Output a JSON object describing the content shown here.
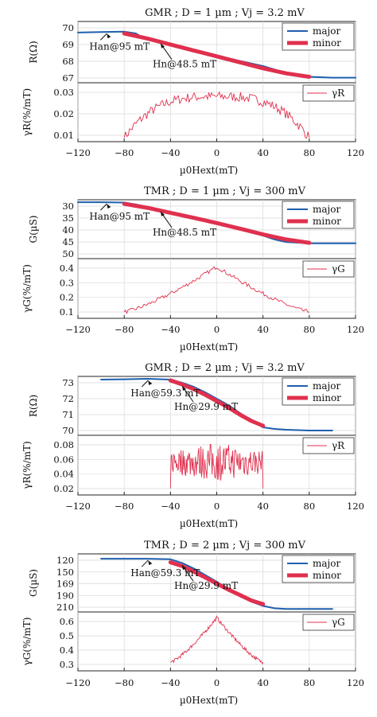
{
  "chart_data": [
    {
      "type": "line",
      "title": "GMR ; D = 1 µm ; Vj = 3.2 mV",
      "top": {
        "ylabel": "R(Ω)",
        "yticks": [
          "70",
          "69",
          "68",
          "67"
        ],
        "ylim": [
          66.6,
          70.2
        ],
        "series": [
          {
            "name": "major",
            "color": "#1f5fae",
            "x": [
              -120,
              -100,
              -80,
              -70,
              -65,
              -60,
              -40,
              -20,
              0,
              20,
              40,
              50,
              60,
              80,
              100,
              120
            ],
            "y": [
              69.55,
              69.58,
              69.6,
              69.5,
              69.3,
              69.2,
              68.85,
              68.5,
              68.2,
              67.88,
              67.58,
              67.38,
              67.15,
              66.95,
              66.9,
              66.9
            ]
          },
          {
            "name": "minor",
            "color": "#e0304e",
            "x": [
              -80,
              -60,
              -40,
              -20,
              0,
              20,
              40,
              60,
              80
            ],
            "y": [
              69.5,
              69.2,
              68.85,
              68.5,
              68.15,
              67.8,
              67.45,
              67.15,
              66.95
            ]
          }
        ],
        "annotations": [
          {
            "label": "Han@95 mT",
            "x": -95,
            "y": 69.58
          },
          {
            "label": "Hn@48.5 mT",
            "x": -48.5,
            "y": 69.0
          }
        ]
      },
      "bottom": {
        "ylabel": "γR(%/mT)",
        "yticks": [
          "0.03",
          "0.02",
          "0.01"
        ],
        "ylim": [
          0.004,
          0.034
        ],
        "series": [
          {
            "name": "γR",
            "color": "#e0304e",
            "kind": "noisy-arch",
            "x_range": [
              -80,
              80
            ],
            "edge": 0.006,
            "peak": 0.027,
            "noise": 0.0025
          }
        ]
      },
      "xlabel": "µ0Hext(mT)",
      "xticks": [
        "−120",
        "−80",
        "−40",
        "0",
        "40",
        "80",
        "120"
      ],
      "xlim": [
        -120,
        120
      ]
    },
    {
      "type": "line",
      "title": "TMR ; D = 1 µm ; Vj = 300 mV",
      "top": {
        "ylabel": "G(µS)",
        "yticks": [
          "30",
          "35",
          "40",
          "45",
          "50"
        ],
        "ylim": [
          29.3,
          50.5
        ],
        "inverted": true,
        "series": [
          {
            "name": "major",
            "color": "#1f5fae",
            "x": [
              -120,
              -100,
              -80,
              -70,
              -60,
              -40,
              -20,
              0,
              20,
              40,
              50,
              60,
              80,
              100,
              120
            ],
            "y": [
              30.2,
              30.2,
              30.3,
              31.0,
              32.0,
              33.8,
              35.6,
              37.6,
              39.8,
              42.2,
              43.6,
              44.5,
              45.0,
              45.0,
              45.0
            ]
          },
          {
            "name": "minor",
            "color": "#e0304e",
            "x": [
              -80,
              -60,
              -40,
              -20,
              0,
              20,
              40,
              60,
              80
            ],
            "y": [
              30.8,
              32.2,
              34.0,
              35.8,
              37.7,
              39.7,
              41.8,
              43.6,
              44.8
            ]
          }
        ],
        "annotations": [
          {
            "label": "Han@95 mT",
            "x": -95,
            "y": 30.2
          },
          {
            "label": "Hn@48.5 mT",
            "x": -48.5,
            "y": 33.0
          }
        ]
      },
      "bottom": {
        "ylabel": "γG(%/mT)",
        "yticks": [
          "0.4",
          "0.3",
          "0.2",
          "0.1"
        ],
        "ylim": [
          0.06,
          0.43
        ],
        "series": [
          {
            "name": "γG",
            "color": "#e0304e",
            "kind": "noisy-peak",
            "x_range": [
              -80,
              80
            ],
            "edge": 0.1,
            "peak": 0.38,
            "noise": 0.012
          }
        ]
      },
      "xlabel": "µ0Hext(mT)",
      "xticks": [
        "−120",
        "−80",
        "−40",
        "0",
        "40",
        "80",
        "120"
      ],
      "xlim": [
        -120,
        120
      ]
    },
    {
      "type": "line",
      "title": "GMR ; D = 2 µm ; Vj = 3.2 mV",
      "top": {
        "ylabel": "R(Ω)",
        "yticks": [
          "73",
          "72",
          "71",
          "70"
        ],
        "ylim": [
          69.8,
          73.5
        ],
        "series": [
          {
            "name": "major",
            "color": "#1f5fae",
            "x": [
              -100,
              -80,
              -60,
              -40,
              -30,
              -20,
              -10,
              0,
              10,
              20,
              30,
              40,
              50,
              60,
              80,
              100
            ],
            "y": [
              73.3,
              73.32,
              73.35,
              73.3,
              73.1,
              72.85,
              72.5,
              72.1,
              71.7,
              71.2,
              70.7,
              70.3,
              70.2,
              70.15,
              70.1,
              70.1
            ]
          },
          {
            "name": "minor",
            "color": "#e0304e",
            "x": [
              -40,
              -30,
              -20,
              -10,
              0,
              10,
              20,
              30,
              40
            ],
            "y": [
              73.25,
              73.0,
              72.7,
              72.35,
              71.95,
              71.55,
              71.1,
              70.7,
              70.4
            ]
          }
        ],
        "annotations": [
          {
            "label": "Han@59.3 mT",
            "x": -59.3,
            "y": 73.35
          },
          {
            "label": "Hn@29.9 mT",
            "x": -29.9,
            "y": 73.0
          }
        ]
      },
      "bottom": {
        "ylabel": "γR(%/mT)",
        "yticks": [
          "0.08",
          "0.06",
          "0.04",
          "0.02"
        ],
        "ylim": [
          0.005,
          0.095
        ],
        "series": [
          {
            "name": "γR",
            "color": "#e0304e",
            "kind": "noisy-flat",
            "x_range": [
              -40,
              40
            ],
            "edge": 0.015,
            "peak": 0.055,
            "noise": 0.03
          }
        ]
      },
      "xlabel": "µ0Hext(mT)",
      "xticks": [
        "−120",
        "−80",
        "−40",
        "0",
        "40",
        "80",
        "120"
      ],
      "xlim": [
        -120,
        120
      ]
    },
    {
      "type": "line",
      "title": "TMR ; D = 2 µm ; Vj = 300 mV",
      "top": {
        "ylabel": "G(µS)",
        "yticks": [
          "120",
          "150",
          "169",
          "190",
          "210"
        ],
        "ylim": [
          118,
          214
        ],
        "inverted": true,
        "series": [
          {
            "name": "major",
            "color": "#1f5fae",
            "x": [
              -100,
              -80,
              -60,
              -40,
              -30,
              -20,
              -10,
              0,
              10,
              20,
              30,
              40,
              50,
              60,
              80,
              100
            ],
            "y": [
              126,
              126,
              126,
              127,
              133,
              142,
              153,
              164,
              176,
              187,
              197,
              204,
              208,
              209,
              209,
              209
            ]
          },
          {
            "name": "minor",
            "color": "#e0304e",
            "x": [
              -40,
              -30,
              -20,
              -10,
              0,
              10,
              20,
              30,
              40
            ],
            "y": [
              132,
              138,
              147,
              157,
              167,
              177,
              186,
              195,
              201
            ]
          }
        ],
        "annotations": [
          {
            "label": "Han@59.3 mT",
            "x": -59.3,
            "y": 126
          },
          {
            "label": "Hn@29.9 mT",
            "x": -29.9,
            "y": 134
          }
        ]
      },
      "bottom": {
        "ylabel": "γG(%/mT)",
        "yticks": [
          "0.6",
          "0.5",
          "0.4",
          "0.3"
        ],
        "ylim": [
          0.27,
          0.68
        ],
        "series": [
          {
            "name": "γG",
            "color": "#e0304e",
            "kind": "noisy-peak",
            "x_range": [
              -40,
              40
            ],
            "edge": 0.33,
            "peak": 0.64,
            "noise": 0.012
          }
        ]
      },
      "xlabel": "µ0Hext(mT)",
      "xticks": [
        "−120",
        "−80",
        "−40",
        "0",
        "40",
        "80",
        "120"
      ],
      "xlim": [
        -120,
        120
      ]
    }
  ]
}
